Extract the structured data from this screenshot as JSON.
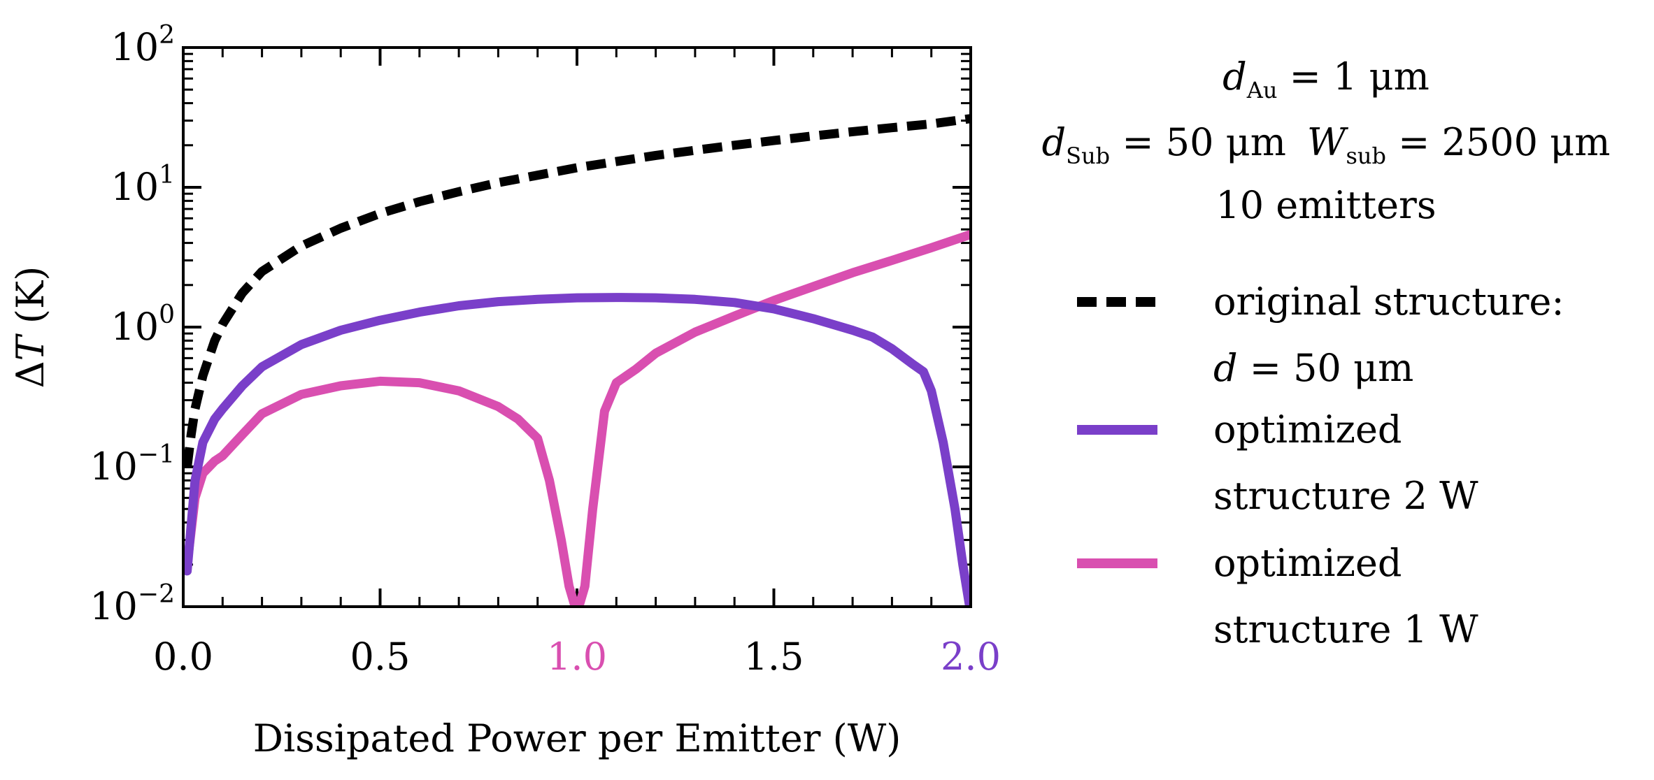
{
  "chart_data": {
    "type": "line",
    "xlabel": "Dissipated Power per Emitter (W)",
    "ylabel_delta": "Δ",
    "ylabel_var": "T",
    "ylabel_unit": " (K)",
    "yscale": "log",
    "xlim": [
      0.0,
      2.0
    ],
    "ylim": [
      0.01,
      100
    ],
    "x_ticks": [
      {
        "value": 0.0,
        "label": "0.0",
        "color": "#000000"
      },
      {
        "value": 0.5,
        "label": "0.5",
        "color": "#000000"
      },
      {
        "value": 1.0,
        "label": "1.0",
        "color": "#D94FB0"
      },
      {
        "value": 1.5,
        "label": "1.5",
        "color": "#000000"
      },
      {
        "value": 2.0,
        "label": "2.0",
        "color": "#7A3FC9"
      }
    ],
    "y_ticks": [
      {
        "value": 0.01,
        "base": "10",
        "exp": "−2"
      },
      {
        "value": 0.1,
        "base": "10",
        "exp": "−1"
      },
      {
        "value": 1,
        "base": "10",
        "exp": "0"
      },
      {
        "value": 10,
        "base": "10",
        "exp": "1"
      },
      {
        "value": 100,
        "base": "10",
        "exp": "2"
      }
    ],
    "annotation": {
      "line1": {
        "var": "d",
        "sub": "Au",
        "rest": " = 1 μm"
      },
      "line2a": {
        "var": "d",
        "sub": "Sub",
        "rest": " = 50 μm"
      },
      "line2b": {
        "var": "W",
        "sub": "sub",
        "rest": " = 2500 μm"
      },
      "line3": "10 emitters"
    },
    "series": [
      {
        "name": "original structure:",
        "name_line2_var": "d",
        "name_line2_rest": " = 50 μm",
        "color": "#000000",
        "dash": true,
        "x": [
          0.01,
          0.02,
          0.03,
          0.05,
          0.08,
          0.1,
          0.15,
          0.2,
          0.3,
          0.4,
          0.5,
          0.6,
          0.7,
          0.8,
          0.9,
          1.0,
          1.1,
          1.2,
          1.3,
          1.4,
          1.5,
          1.6,
          1.7,
          1.8,
          1.9,
          2.0
        ],
        "values": [
          0.1,
          0.17,
          0.26,
          0.45,
          0.8,
          1.05,
          1.75,
          2.5,
          3.8,
          5.1,
          6.5,
          7.9,
          9.3,
          10.8,
          12.2,
          13.8,
          15.3,
          16.9,
          18.4,
          20.0,
          21.6,
          23.3,
          25.0,
          26.7,
          28.4,
          31.0
        ]
      },
      {
        "name": "optimized",
        "name_line2": "structure 2 W",
        "color": "#7A3FC9",
        "dash": false,
        "x": [
          0.01,
          0.03,
          0.05,
          0.08,
          0.1,
          0.15,
          0.2,
          0.3,
          0.4,
          0.5,
          0.6,
          0.7,
          0.8,
          0.9,
          1.0,
          1.1,
          1.2,
          1.3,
          1.4,
          1.5,
          1.6,
          1.7,
          1.75,
          1.8,
          1.85,
          1.88,
          1.9,
          1.93,
          1.96,
          1.98,
          2.0
        ],
        "values": [
          0.018,
          0.08,
          0.15,
          0.22,
          0.26,
          0.38,
          0.52,
          0.75,
          0.95,
          1.12,
          1.28,
          1.42,
          1.52,
          1.58,
          1.62,
          1.63,
          1.62,
          1.58,
          1.5,
          1.35,
          1.15,
          0.95,
          0.85,
          0.7,
          0.55,
          0.48,
          0.35,
          0.15,
          0.05,
          0.02,
          0.009
        ]
      },
      {
        "name": "optimized",
        "name_line2": "structure 1 W",
        "color": "#D94FB0",
        "dash": false,
        "x": [
          0.01,
          0.03,
          0.05,
          0.08,
          0.1,
          0.15,
          0.2,
          0.3,
          0.4,
          0.5,
          0.6,
          0.7,
          0.8,
          0.85,
          0.9,
          0.93,
          0.96,
          0.98,
          1.0,
          1.02,
          1.04,
          1.07,
          1.1,
          1.15,
          1.2,
          1.3,
          1.4,
          1.5,
          1.6,
          1.7,
          1.8,
          1.9,
          2.0
        ],
        "values": [
          0.02,
          0.06,
          0.09,
          0.11,
          0.12,
          0.17,
          0.24,
          0.33,
          0.38,
          0.41,
          0.4,
          0.35,
          0.27,
          0.22,
          0.16,
          0.08,
          0.03,
          0.014,
          0.009,
          0.014,
          0.05,
          0.25,
          0.4,
          0.5,
          0.65,
          0.92,
          1.2,
          1.55,
          1.95,
          2.45,
          3.0,
          3.7,
          4.6
        ]
      }
    ]
  }
}
